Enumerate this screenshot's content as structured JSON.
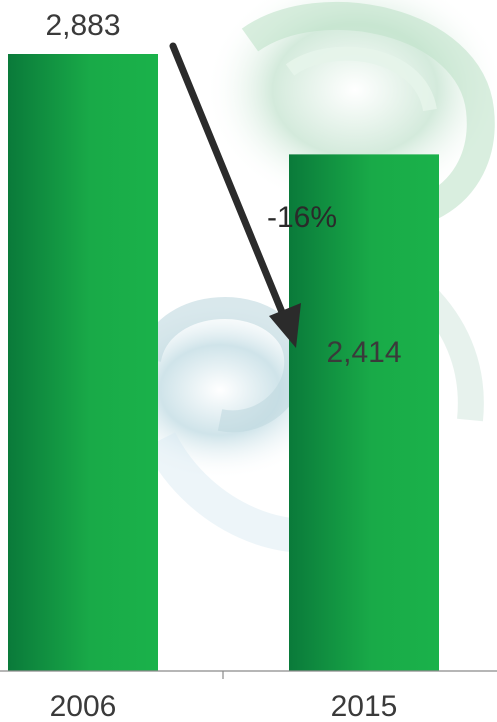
{
  "chart_data": {
    "type": "bar",
    "categories": [
      "2006",
      "2015"
    ],
    "values": [
      2883,
      2414
    ],
    "value_labels": [
      "2,883",
      "2,414"
    ],
    "annotation": "-16%",
    "colors": {
      "bar_dark": "#0a7a3a",
      "bar_light": "#1ab24a",
      "text": "#3a3a3a",
      "arrow": "#2b2b2b"
    },
    "grid": false,
    "legend": "none"
  }
}
